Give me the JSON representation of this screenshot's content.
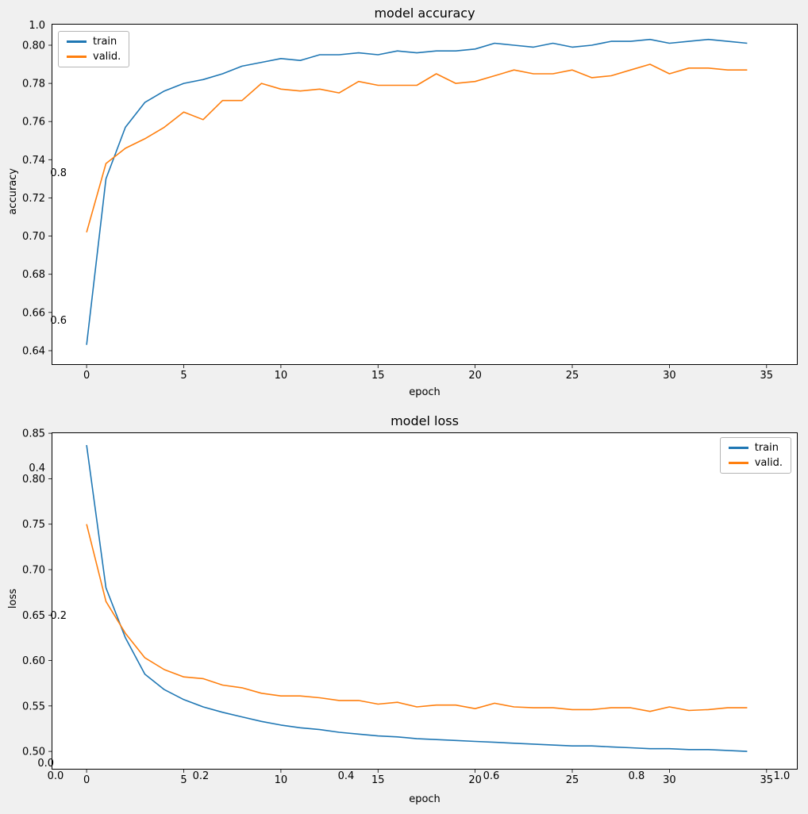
{
  "figure": {
    "background": "#f0f0f0"
  },
  "chart_data": [
    {
      "type": "line",
      "title": "model accuracy",
      "xlabel": "epoch",
      "ylabel": "accuracy",
      "legend_position": "upper-left",
      "grid": false,
      "x": [
        0,
        1,
        2,
        3,
        4,
        5,
        6,
        7,
        8,
        9,
        10,
        11,
        12,
        13,
        14,
        15,
        16,
        17,
        18,
        19,
        20,
        21,
        22,
        23,
        24,
        25,
        26,
        27,
        28,
        29,
        30,
        31,
        32,
        33,
        34
      ],
      "series": [
        {
          "name": "train",
          "color": "#1f77b4",
          "values": [
            0.643,
            0.73,
            0.757,
            0.77,
            0.776,
            0.78,
            0.782,
            0.785,
            0.789,
            0.791,
            0.793,
            0.792,
            0.795,
            0.795,
            0.796,
            0.795,
            0.797,
            0.796,
            0.797,
            0.797,
            0.798,
            0.801,
            0.8,
            0.799,
            0.801,
            0.799,
            0.8,
            0.802,
            0.802,
            0.803,
            0.801,
            0.802,
            0.803,
            0.802,
            0.801
          ]
        },
        {
          "name": "valid.",
          "color": "#ff7f0e",
          "values": [
            0.702,
            0.738,
            0.746,
            0.751,
            0.757,
            0.765,
            0.761,
            0.771,
            0.771,
            0.78,
            0.777,
            0.776,
            0.777,
            0.775,
            0.781,
            0.779,
            0.779,
            0.779,
            0.785,
            0.78,
            0.781,
            0.784,
            0.787,
            0.785,
            0.785,
            0.787,
            0.783,
            0.784,
            0.787,
            0.79,
            0.785,
            0.788,
            0.788,
            0.787,
            0.787
          ]
        }
      ],
      "xlim": [
        -1.8,
        36.6
      ],
      "ylim": [
        0.6325,
        0.8112
      ],
      "xticks": [
        0,
        5,
        10,
        15,
        20,
        25,
        30,
        35
      ],
      "xticklabels": [
        "0",
        "5",
        "10",
        "15",
        "20",
        "25",
        "30",
        "35"
      ],
      "yticks": [
        0.64,
        0.66,
        0.68,
        0.7,
        0.72,
        0.74,
        0.76,
        0.78,
        0.8
      ],
      "yticklabels": [
        "0.64",
        "0.66",
        "0.68",
        "0.70",
        "0.72",
        "0.74",
        "0.76",
        "0.78",
        "0.80"
      ]
    },
    {
      "type": "line",
      "title": "model loss",
      "xlabel": "epoch",
      "ylabel": "loss",
      "legend_position": "upper-right",
      "grid": false,
      "x": [
        0,
        1,
        2,
        3,
        4,
        5,
        6,
        7,
        8,
        9,
        10,
        11,
        12,
        13,
        14,
        15,
        16,
        17,
        18,
        19,
        20,
        21,
        22,
        23,
        24,
        25,
        26,
        27,
        28,
        29,
        30,
        31,
        32,
        33,
        34
      ],
      "series": [
        {
          "name": "train",
          "color": "#1f77b4",
          "values": [
            0.837,
            0.68,
            0.625,
            0.585,
            0.568,
            0.557,
            0.549,
            0.543,
            0.538,
            0.533,
            0.529,
            0.526,
            0.524,
            0.521,
            0.519,
            0.517,
            0.516,
            0.514,
            0.513,
            0.512,
            0.511,
            0.51,
            0.509,
            0.508,
            0.507,
            0.506,
            0.506,
            0.505,
            0.504,
            0.503,
            0.503,
            0.502,
            0.502,
            0.501,
            0.5
          ]
        },
        {
          "name": "valid.",
          "color": "#ff7f0e",
          "values": [
            0.75,
            0.665,
            0.63,
            0.603,
            0.59,
            0.582,
            0.58,
            0.573,
            0.57,
            0.564,
            0.561,
            0.561,
            0.559,
            0.556,
            0.556,
            0.552,
            0.554,
            0.549,
            0.551,
            0.551,
            0.547,
            0.553,
            0.549,
            0.548,
            0.548,
            0.546,
            0.546,
            0.548,
            0.548,
            0.544,
            0.549,
            0.545,
            0.546,
            0.548,
            0.548
          ]
        }
      ],
      "xlim": [
        -1.8,
        36.6
      ],
      "ylim": [
        0.48,
        0.851
      ],
      "xticks": [
        0,
        5,
        10,
        15,
        20,
        25,
        30,
        35
      ],
      "xticklabels": [
        "0",
        "5",
        "10",
        "15",
        "20",
        "25",
        "30",
        "35"
      ],
      "yticks": [
        0.5,
        0.55,
        0.6,
        0.65,
        0.7,
        0.75,
        0.8,
        0.85
      ],
      "yticklabels": [
        "0.50",
        "0.55",
        "0.60",
        "0.65",
        "0.70",
        "0.75",
        "0.80",
        "0.85"
      ]
    }
  ],
  "overlay_axis": {
    "yticklabels": [
      "1.0",
      "0.8",
      "0.6",
      "0.4",
      "0.2",
      "0.0"
    ],
    "xticklabels": [
      "0.0",
      "0.2",
      "0.4",
      "0.6",
      "0.8",
      "1.0"
    ]
  }
}
